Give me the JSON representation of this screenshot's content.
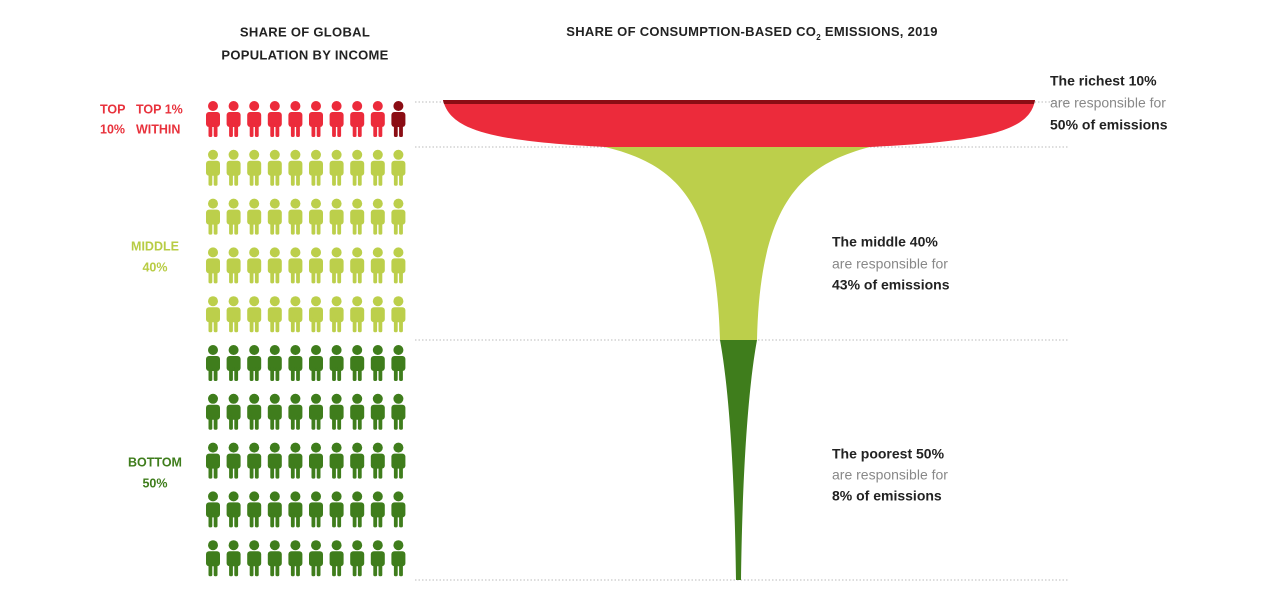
{
  "header": {
    "population_title": [
      "SHARE OF GLOBAL",
      "POPULATION BY INCOME"
    ],
    "emissions_title": [
      "SHARE OF CONSUMPTION-BASED CO",
      "2",
      " EMISSIONS, 2019"
    ]
  },
  "groups": [
    {
      "label": [
        "TOP",
        "10%"
      ],
      "sublabel": [
        "TOP 1%",
        "WITHIN"
      ],
      "note": [
        "The richest 10%",
        "are responsible for",
        "50% of emissions"
      ]
    },
    {
      "label": [
        "MIDDLE",
        "40%"
      ],
      "note": [
        "The middle 40%",
        "are responsible for",
        "43% of emissions"
      ]
    },
    {
      "label": [
        "BOTTOM",
        "50%"
      ],
      "note": [
        "The poorest 50%",
        "are responsible for",
        "8% of emissions"
      ]
    }
  ]
}
